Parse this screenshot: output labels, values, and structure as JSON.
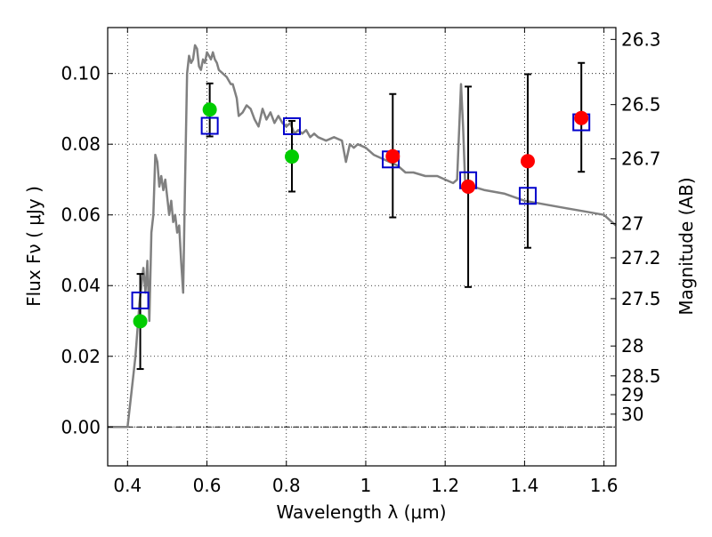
{
  "chart_data": {
    "type": "scatter",
    "xlabel": "Wavelength  λ (μm)",
    "ylabel": "Flux  Fν  ( μJy )",
    "y2label": "Magnitude (AB)",
    "xlim": [
      0.35,
      1.63
    ],
    "ylim": [
      -0.011,
      0.113
    ],
    "grid": true,
    "x_ticks": [
      {
        "value": 0.4,
        "label": "0.4"
      },
      {
        "value": 0.6,
        "label": "0.6"
      },
      {
        "value": 0.8,
        "label": "0.8"
      },
      {
        "value": 1.0,
        "label": "1"
      },
      {
        "value": 1.2,
        "label": "1.2"
      },
      {
        "value": 1.4,
        "label": "1.4"
      },
      {
        "value": 1.6,
        "label": "1.6"
      }
    ],
    "y_ticks": [
      {
        "value": 0.0,
        "label": "0.00"
      },
      {
        "value": 0.02,
        "label": "0.02"
      },
      {
        "value": 0.04,
        "label": "0.04"
      },
      {
        "value": 0.06,
        "label": "0.06"
      },
      {
        "value": 0.08,
        "label": "0.08"
      },
      {
        "value": 0.1,
        "label": "0.10"
      }
    ],
    "y2_ticks": [
      {
        "value": 26.3,
        "label": "26.3"
      },
      {
        "value": 26.5,
        "label": "26.5"
      },
      {
        "value": 26.7,
        "label": "26.7"
      },
      {
        "value": 27.0,
        "label": "27"
      },
      {
        "value": 27.2,
        "label": "27.2"
      },
      {
        "value": 27.5,
        "label": "27.5"
      },
      {
        "value": 28.0,
        "label": "28"
      },
      {
        "value": 28.5,
        "label": "28.5"
      },
      {
        "value": 29.0,
        "label": "29"
      },
      {
        "value": 30.0,
        "label": "30"
      }
    ],
    "model_sed": {
      "color": "#808080",
      "x": [
        0.35,
        0.4,
        0.41,
        0.42,
        0.43,
        0.435,
        0.44,
        0.445,
        0.45,
        0.455,
        0.46,
        0.465,
        0.47,
        0.475,
        0.48,
        0.485,
        0.49,
        0.495,
        0.5,
        0.505,
        0.51,
        0.515,
        0.52,
        0.525,
        0.53,
        0.535,
        0.54,
        0.545,
        0.55,
        0.555,
        0.56,
        0.565,
        0.57,
        0.575,
        0.58,
        0.585,
        0.59,
        0.595,
        0.6,
        0.605,
        0.61,
        0.615,
        0.62,
        0.625,
        0.63,
        0.64,
        0.65,
        0.66,
        0.665,
        0.67,
        0.675,
        0.68,
        0.69,
        0.7,
        0.71,
        0.72,
        0.73,
        0.74,
        0.75,
        0.76,
        0.77,
        0.78,
        0.79,
        0.8,
        0.81,
        0.82,
        0.83,
        0.84,
        0.85,
        0.86,
        0.87,
        0.88,
        0.9,
        0.92,
        0.94,
        0.95,
        0.96,
        0.97,
        0.98,
        1.0,
        1.02,
        1.04,
        1.06,
        1.08,
        1.1,
        1.12,
        1.15,
        1.18,
        1.2,
        1.22,
        1.23,
        1.24,
        1.245,
        1.25,
        1.255,
        1.26,
        1.27,
        1.3,
        1.35,
        1.4,
        1.45,
        1.5,
        1.55,
        1.6,
        1.62,
        1.63
      ],
      "y": [
        0.0,
        0.0,
        0.01,
        0.02,
        0.035,
        0.04,
        0.045,
        0.038,
        0.047,
        0.03,
        0.055,
        0.06,
        0.077,
        0.075,
        0.068,
        0.071,
        0.067,
        0.07,
        0.065,
        0.06,
        0.064,
        0.058,
        0.06,
        0.055,
        0.057,
        0.047,
        0.038,
        0.07,
        0.1,
        0.105,
        0.103,
        0.104,
        0.108,
        0.107,
        0.102,
        0.101,
        0.104,
        0.103,
        0.106,
        0.105,
        0.104,
        0.106,
        0.104,
        0.103,
        0.101,
        0.1,
        0.099,
        0.097,
        0.097,
        0.095,
        0.093,
        0.088,
        0.089,
        0.091,
        0.09,
        0.087,
        0.085,
        0.09,
        0.087,
        0.089,
        0.086,
        0.088,
        0.086,
        0.085,
        0.086,
        0.083,
        0.084,
        0.083,
        0.084,
        0.082,
        0.083,
        0.082,
        0.081,
        0.082,
        0.081,
        0.075,
        0.08,
        0.079,
        0.08,
        0.079,
        0.077,
        0.076,
        0.075,
        0.074,
        0.072,
        0.072,
        0.071,
        0.071,
        0.07,
        0.069,
        0.07,
        0.097,
        0.085,
        0.07,
        0.069,
        0.069,
        0.068,
        0.067,
        0.066,
        0.064,
        0.063,
        0.062,
        0.061,
        0.06,
        0.058,
        0.057
      ]
    },
    "series": [
      {
        "marker": "open-square",
        "color": "#0000cc",
        "x": [
          0.432,
          0.607,
          0.814,
          1.063,
          1.258,
          1.408,
          1.543
        ],
        "y": [
          0.0358,
          0.0852,
          0.0851,
          0.0757,
          0.0698,
          0.0654,
          0.0862
        ]
      },
      {
        "marker": "filled-circle",
        "color": "#00cc00",
        "x": [
          0.432,
          0.607,
          0.814
        ],
        "y": [
          0.0299,
          0.0898,
          0.0765
        ]
      },
      {
        "marker": "filled-circle",
        "color": "#ff0000",
        "x": [
          1.068,
          1.258,
          1.408,
          1.543
        ],
        "y": [
          0.0766,
          0.068,
          0.0752,
          0.0874
        ]
      }
    ],
    "error_bars": [
      {
        "x": 0.432,
        "low": 0.0164,
        "high": 0.0433
      },
      {
        "x": 0.607,
        "low": 0.0822,
        "high": 0.0972
      },
      {
        "x": 0.814,
        "low": 0.0666,
        "high": 0.0866
      },
      {
        "x": 1.068,
        "low": 0.0593,
        "high": 0.0942
      },
      {
        "x": 1.258,
        "low": 0.0396,
        "high": 0.0963
      },
      {
        "x": 1.408,
        "low": 0.0507,
        "high": 0.0998
      },
      {
        "x": 1.543,
        "low": 0.0722,
        "high": 0.103
      }
    ]
  }
}
